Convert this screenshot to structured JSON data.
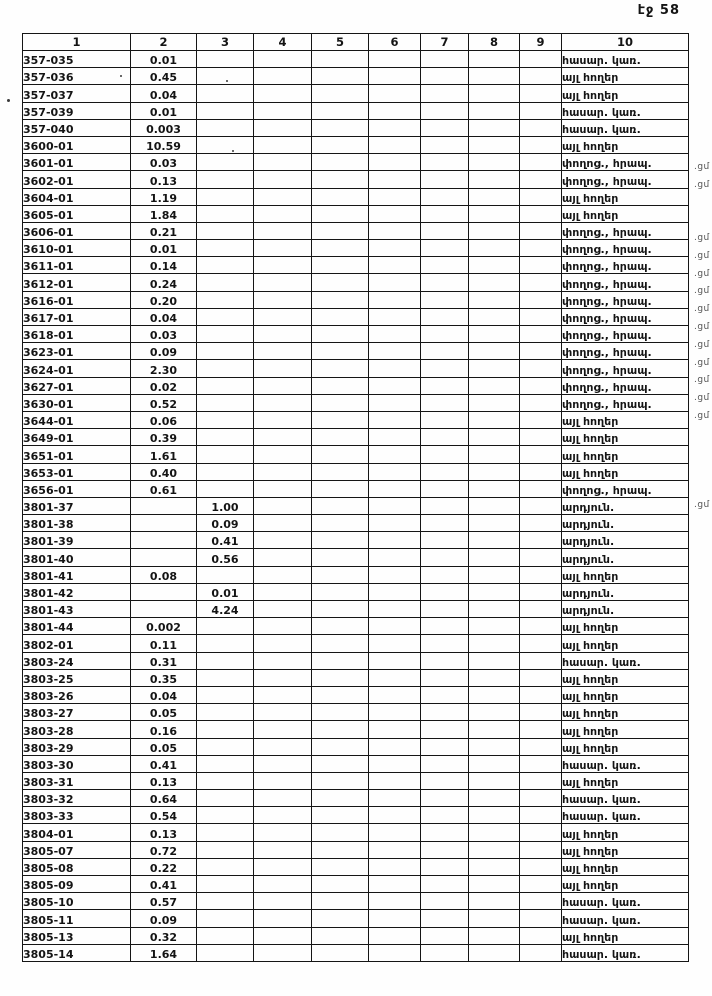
{
  "page": {
    "label": "էջ 58"
  },
  "colors": {
    "ink": "#141414",
    "paper": "#fefefe"
  },
  "table": {
    "headers": [
      "1",
      "2",
      "3",
      "4",
      "5",
      "6",
      "7",
      "8",
      "9",
      "10"
    ],
    "rows": [
      {
        "code": "357-035",
        "col2": "0.01",
        "col3": "",
        "category": "հասար. կառ.",
        "mark": ""
      },
      {
        "code": "357-036",
        "col2": "0.45",
        "col3": "",
        "category": "այլ հողեր",
        "mark": ""
      },
      {
        "code": "357-037",
        "col2": "0.04",
        "col3": "",
        "category": "այլ հողեր",
        "mark": ""
      },
      {
        "code": "357-039",
        "col2": "0.01",
        "col3": "",
        "category": "հասար. կառ.",
        "mark": ""
      },
      {
        "code": "357-040",
        "col2": "0.003",
        "col3": "",
        "category": "հասար. կառ.",
        "mark": ""
      },
      {
        "code": "3600-01",
        "col2": "10.59",
        "col3": "",
        "category": "այլ հողեր",
        "mark": ""
      },
      {
        "code": "3601-01",
        "col2": "0.03",
        "col3": "",
        "category": "փողոց., հրապ.",
        "mark": ".ցմ"
      },
      {
        "code": "3602-01",
        "col2": "0.13",
        "col3": "",
        "category": "փողոց., հրապ.",
        "mark": ".ցմ"
      },
      {
        "code": "3604-01",
        "col2": "1.19",
        "col3": "",
        "category": "այլ հողեր",
        "mark": ""
      },
      {
        "code": "3605-01",
        "col2": "1.84",
        "col3": "",
        "category": "այլ հողեր",
        "mark": ""
      },
      {
        "code": "3606-01",
        "col2": "0.21",
        "col3": "",
        "category": "փողոց., հրապ.",
        "mark": ".ցմ"
      },
      {
        "code": "3610-01",
        "col2": "0.01",
        "col3": "",
        "category": "փողոց., հրապ.",
        "mark": ".ցմ"
      },
      {
        "code": "3611-01",
        "col2": "0.14",
        "col3": "",
        "category": "փողոց., հրապ.",
        "mark": ".ցմ"
      },
      {
        "code": "3612-01",
        "col2": "0.24",
        "col3": "",
        "category": "փողոց., հրապ.",
        "mark": ".ցմ"
      },
      {
        "code": "3616-01",
        "col2": "0.20",
        "col3": "",
        "category": "փողոց., հրապ.",
        "mark": ".ցմ"
      },
      {
        "code": "3617-01",
        "col2": "0.04",
        "col3": "",
        "category": "փողոց., հրապ.",
        "mark": ".ցմ"
      },
      {
        "code": "3618-01",
        "col2": "0.03",
        "col3": "",
        "category": "փողոց., հրապ.",
        "mark": ".ցմ"
      },
      {
        "code": "3623-01",
        "col2": "0.09",
        "col3": "",
        "category": "փողոց., հրապ.",
        "mark": ".ցմ"
      },
      {
        "code": "3624-01",
        "col2": "2.30",
        "col3": "",
        "category": "փողոց., հրապ.",
        "mark": ".ցմ"
      },
      {
        "code": "3627-01",
        "col2": "0.02",
        "col3": "",
        "category": "փողոց., հրապ.",
        "mark": ".ցմ"
      },
      {
        "code": "3630-01",
        "col2": "0.52",
        "col3": "",
        "category": "փողոց., հրապ.",
        "mark": ".ցմ"
      },
      {
        "code": "3644-01",
        "col2": "0.06",
        "col3": "",
        "category": "այլ հողեր",
        "mark": ""
      },
      {
        "code": "3649-01",
        "col2": "0.39",
        "col3": "",
        "category": "այլ հողեր",
        "mark": ""
      },
      {
        "code": "3651-01",
        "col2": "1.61",
        "col3": "",
        "category": "այլ հողեր",
        "mark": ""
      },
      {
        "code": "3653-01",
        "col2": "0.40",
        "col3": "",
        "category": "այլ հողեր",
        "mark": ""
      },
      {
        "code": "3656-01",
        "col2": "0.61",
        "col3": "",
        "category": "փողոց., հրապ.",
        "mark": ".ցմ"
      },
      {
        "code": "3801-37",
        "col2": "",
        "col3": "1.00",
        "category": "արդյուն.",
        "mark": ""
      },
      {
        "code": "3801-38",
        "col2": "",
        "col3": "0.09",
        "category": "արդյուն.",
        "mark": ""
      },
      {
        "code": "3801-39",
        "col2": "",
        "col3": "0.41",
        "category": "արդյուն.",
        "mark": ""
      },
      {
        "code": "3801-40",
        "col2": "",
        "col3": "0.56",
        "category": "արդյուն.",
        "mark": ""
      },
      {
        "code": "3801-41",
        "col2": "0.08",
        "col3": "",
        "category": "այլ հողեր",
        "mark": ""
      },
      {
        "code": "3801-42",
        "col2": "",
        "col3": "0.01",
        "category": "արդյուն.",
        "mark": ""
      },
      {
        "code": "3801-43",
        "col2": "",
        "col3": "4.24",
        "category": "արդյուն.",
        "mark": ""
      },
      {
        "code": "3801-44",
        "col2": "0.002",
        "col3": "",
        "category": "այլ հողեր",
        "mark": ""
      },
      {
        "code": "3802-01",
        "col2": "0.11",
        "col3": "",
        "category": "այլ հողեր",
        "mark": ""
      },
      {
        "code": "3803-24",
        "col2": "0.31",
        "col3": "",
        "category": "հասար. կառ.",
        "mark": ""
      },
      {
        "code": "3803-25",
        "col2": "0.35",
        "col3": "",
        "category": "այլ հողեր",
        "mark": ""
      },
      {
        "code": "3803-26",
        "col2": "0.04",
        "col3": "",
        "category": "այլ հողեր",
        "mark": ""
      },
      {
        "code": "3803-27",
        "col2": "0.05",
        "col3": "",
        "category": "այլ հողեր",
        "mark": ""
      },
      {
        "code": "3803-28",
        "col2": "0.16",
        "col3": "",
        "category": "այլ հողեր",
        "mark": ""
      },
      {
        "code": "3803-29",
        "col2": "0.05",
        "col3": "",
        "category": "այլ հողեր",
        "mark": ""
      },
      {
        "code": "3803-30",
        "col2": "0.41",
        "col3": "",
        "category": "հասար. կառ.",
        "mark": ""
      },
      {
        "code": "3803-31",
        "col2": "0.13",
        "col3": "",
        "category": "այլ հողեր",
        "mark": ""
      },
      {
        "code": "3803-32",
        "col2": "0.64",
        "col3": "",
        "category": "հասար. կառ.",
        "mark": ""
      },
      {
        "code": "3803-33",
        "col2": "0.54",
        "col3": "",
        "category": "հասար. կառ.",
        "mark": ""
      },
      {
        "code": "3804-01",
        "col2": "0.13",
        "col3": "",
        "category": "այլ հողեր",
        "mark": ""
      },
      {
        "code": "3805-07",
        "col2": "0.72",
        "col3": "",
        "category": "այլ հողեր",
        "mark": ""
      },
      {
        "code": "3805-08",
        "col2": "0.22",
        "col3": "",
        "category": "այլ հողեր",
        "mark": ""
      },
      {
        "code": "3805-09",
        "col2": "0.41",
        "col3": "",
        "category": "այլ հողեր",
        "mark": ""
      },
      {
        "code": "3805-10",
        "col2": "0.57",
        "col3": "",
        "category": "հասար. կառ.",
        "mark": ""
      },
      {
        "code": "3805-11",
        "col2": "0.09",
        "col3": "",
        "category": "հասար. կառ.",
        "mark": ""
      },
      {
        "code": "3805-13",
        "col2": "0.32",
        "col3": "",
        "category": "այլ հողեր",
        "mark": ""
      },
      {
        "code": "3805-14",
        "col2": "1.64",
        "col3": "",
        "category": "հասար. կառ.",
        "mark": ""
      }
    ]
  }
}
